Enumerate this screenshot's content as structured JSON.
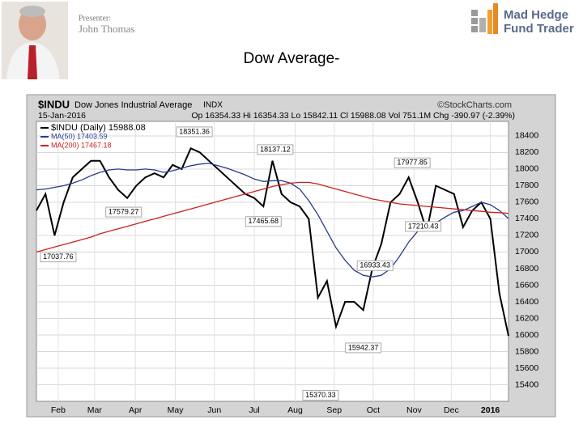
{
  "slide": {
    "title": "Dow Average-",
    "presenter_label": "Presenter:",
    "presenter_name": "John Thomas",
    "logo_line1": "Mad Hedge",
    "logo_line2": "Fund Trader"
  },
  "chart_data": {
    "type": "line",
    "symbol": "$INDU",
    "name": "Dow Jones Industrial Average",
    "exchange": "INDX",
    "source": "©StockCharts.com",
    "date": "15-Jan-2016",
    "stats": "Op 16354.33 Hi 16354.33 Lo 15842.11 Cl 15988.08 Vol 751.1M Chg -390.97 (-2.39%)",
    "series": [
      {
        "name": "$INDU (Daily) 15988.08",
        "color": "#000000",
        "values": [
          17500,
          17700,
          17200,
          17600,
          17900,
          18000,
          18100,
          18100,
          17900,
          17750,
          17650,
          17800,
          17900,
          17950,
          17900,
          18050,
          18000,
          18250,
          18200,
          18100,
          18000,
          17900,
          17800,
          17700,
          17650,
          17550,
          18100,
          17700,
          17600,
          17550,
          17400,
          16450,
          16650,
          16100,
          16400,
          16400,
          16300,
          16800,
          17100,
          17600,
          17700,
          17900,
          17600,
          17250,
          17800,
          17750,
          17700,
          17300,
          17500,
          17600,
          17400,
          16500,
          15988.08
        ]
      },
      {
        "name": "MA(50) 17403.59",
        "color": "#2b3a8f",
        "values": [
          17750,
          17760,
          17780,
          17800,
          17830,
          17870,
          17920,
          17960,
          17990,
          18000,
          17990,
          17990,
          18000,
          17990,
          17960,
          17980,
          18010,
          18040,
          18060,
          18070,
          18040,
          18010,
          17970,
          17930,
          17880,
          17850,
          17860,
          17860,
          17830,
          17760,
          17620,
          17450,
          17250,
          17050,
          16900,
          16780,
          16720,
          16700,
          16720,
          16800,
          16950,
          17120,
          17250,
          17300,
          17350,
          17420,
          17480,
          17500,
          17550,
          17600,
          17570,
          17500,
          17403.59
        ]
      },
      {
        "name": "MA(200) 17467.18",
        "color": "#cc2020",
        "values": [
          17000,
          17030,
          17060,
          17090,
          17120,
          17150,
          17180,
          17220,
          17250,
          17280,
          17310,
          17340,
          17370,
          17400,
          17430,
          17460,
          17490,
          17520,
          17550,
          17580,
          17610,
          17640,
          17670,
          17700,
          17730,
          17760,
          17790,
          17810,
          17830,
          17840,
          17840,
          17820,
          17790,
          17760,
          17730,
          17700,
          17670,
          17640,
          17620,
          17600,
          17580,
          17570,
          17560,
          17550,
          17540,
          17530,
          17520,
          17510,
          17500,
          17490,
          17480,
          17475,
          17467.18
        ]
      }
    ],
    "annotations": [
      {
        "x": 17.4,
        "value": 18351.36,
        "label": "18351.36"
      },
      {
        "x": 26.3,
        "value": 18137.12,
        "label": "18137.12"
      },
      {
        "x": 41.4,
        "value": 17977.85,
        "label": "17977.85"
      },
      {
        "x": 9.6,
        "value": 17579.27,
        "label": "17579.27"
      },
      {
        "x": 25,
        "value": 17465.68,
        "label": "17465.68"
      },
      {
        "x": 2.4,
        "value": 17037.76,
        "label": "17037.76"
      },
      {
        "x": 37.3,
        "value": 16933.43,
        "label": "16933.43"
      },
      {
        "x": 42.6,
        "value": 17210.43,
        "label": "17210.43"
      },
      {
        "x": 36,
        "value": 15942.37,
        "label": "15942.37"
      },
      {
        "x": 31.3,
        "value": 15370.33,
        "label": "15370.33"
      }
    ],
    "xlim": [
      0,
      52
    ],
    "xticks": [
      {
        "value": 2.4,
        "label": "Feb"
      },
      {
        "value": 6.4,
        "label": "Mar"
      },
      {
        "value": 10.9,
        "label": "Apr"
      },
      {
        "value": 15.3,
        "label": "May"
      },
      {
        "value": 19.6,
        "label": "Jun"
      },
      {
        "value": 24,
        "label": "Jul"
      },
      {
        "value": 28.5,
        "label": "Aug"
      },
      {
        "value": 32.8,
        "label": "Sep"
      },
      {
        "value": 37.1,
        "label": "Oct"
      },
      {
        "value": 41.6,
        "label": "Nov"
      },
      {
        "value": 45.7,
        "label": "Dec"
      },
      {
        "value": 50,
        "label": "2016"
      }
    ],
    "ylim": [
      15200,
      18575
    ],
    "yticks": [
      15400,
      15600,
      15800,
      16000,
      16200,
      16400,
      16600,
      16800,
      17000,
      17200,
      17400,
      17600,
      17800,
      18000,
      18200,
      18400
    ],
    "grid": true
  }
}
